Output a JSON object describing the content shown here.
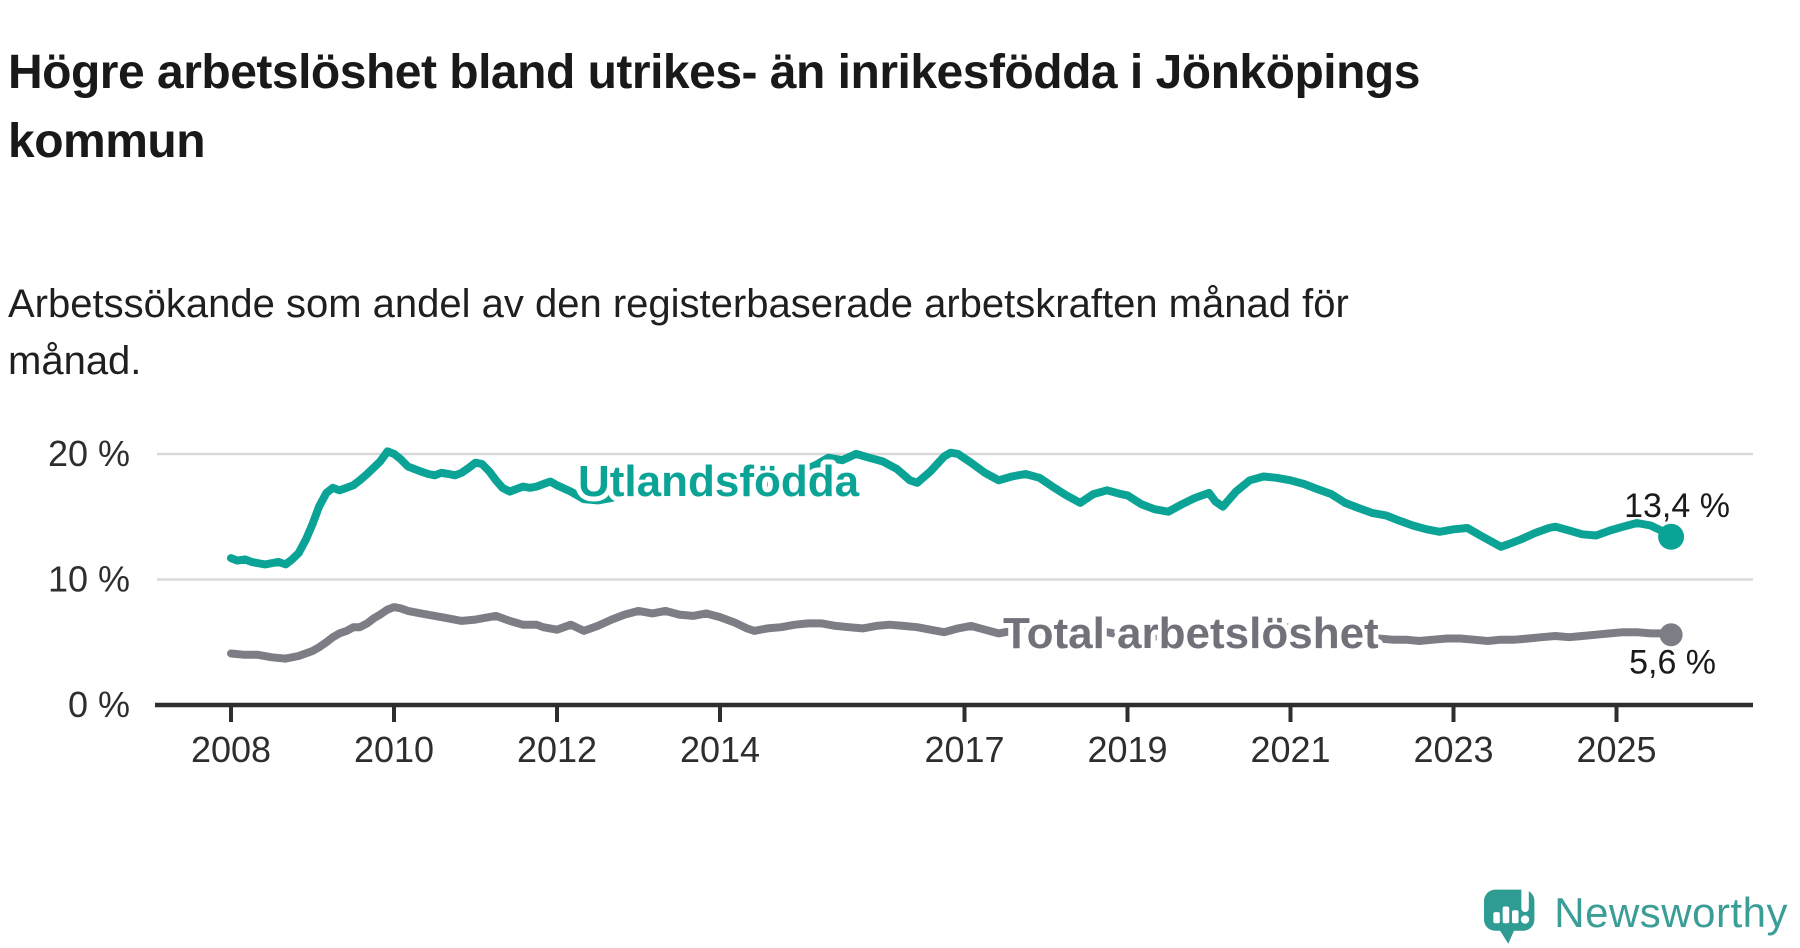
{
  "header": {
    "title": "Högre arbetslöshet bland utrikes- än inrikesfödda i Jönköpings kommun",
    "subtitle": "Arbetssökande som andel av den registerbaserade arbetskraften månad för månad."
  },
  "footer": {
    "brand": "Newsworthy"
  },
  "colors": {
    "teal_line": "#0aa396",
    "gray_line": "#7d7d85",
    "gray_label": "#71717a",
    "logo_teal": "#3a9d96",
    "logo_bubble": "#2f9c94",
    "text_dark": "#191919",
    "axis": "#2e2e2e",
    "grid": "#d9d9d9",
    "value_label": "#1a1a1a"
  },
  "chart_data": {
    "type": "line",
    "title": "Högre arbetslöshet bland utrikes- än inrikesfödda i Jönköpings kommun",
    "subtitle": "Arbetssökande som andel av den registerbaserade arbetskraften månad för månad.",
    "x_unit": "year (monthly observations)",
    "xlim": [
      2007.1,
      2026.7
    ],
    "ylim": [
      0,
      22
    ],
    "grid": true,
    "legend_position": "inline-labels",
    "y_ticks": [
      {
        "value": 0,
        "label": "0 %"
      },
      {
        "value": 10,
        "label": "10 %"
      },
      {
        "value": 20,
        "label": "20 %"
      }
    ],
    "x_ticks": [
      {
        "value": 2008,
        "label": "2008"
      },
      {
        "value": 2010,
        "label": "2010"
      },
      {
        "value": 2012,
        "label": "2012"
      },
      {
        "value": 2014,
        "label": "2014"
      },
      {
        "value": 2017,
        "label": "2017"
      },
      {
        "value": 2019,
        "label": "2019"
      },
      {
        "value": 2021,
        "label": "2021"
      },
      {
        "value": 2023,
        "label": "2023"
      },
      {
        "value": 2025,
        "label": "2025"
      }
    ],
    "series": [
      {
        "name": "Utlandsfödda",
        "color": "#0aa396",
        "label_color": "#0aa396",
        "end_label": "13,4 %",
        "end_value": 13.4,
        "points": [
          [
            2008.0,
            11.7
          ],
          [
            2008.08,
            11.5
          ],
          [
            2008.17,
            11.6
          ],
          [
            2008.25,
            11.4
          ],
          [
            2008.33,
            11.3
          ],
          [
            2008.42,
            11.2
          ],
          [
            2008.5,
            11.3
          ],
          [
            2008.58,
            11.4
          ],
          [
            2008.67,
            11.2
          ],
          [
            2008.75,
            11.6
          ],
          [
            2008.83,
            12.1
          ],
          [
            2008.92,
            13.2
          ],
          [
            2009.0,
            14.4
          ],
          [
            2009.08,
            15.8
          ],
          [
            2009.17,
            16.9
          ],
          [
            2009.25,
            17.3
          ],
          [
            2009.33,
            17.1
          ],
          [
            2009.42,
            17.3
          ],
          [
            2009.5,
            17.5
          ],
          [
            2009.58,
            17.9
          ],
          [
            2009.67,
            18.4
          ],
          [
            2009.75,
            18.9
          ],
          [
            2009.83,
            19.4
          ],
          [
            2009.92,
            20.2
          ],
          [
            2010.0,
            20.0
          ],
          [
            2010.08,
            19.6
          ],
          [
            2010.17,
            19.0
          ],
          [
            2010.25,
            18.8
          ],
          [
            2010.33,
            18.6
          ],
          [
            2010.42,
            18.4
          ],
          [
            2010.5,
            18.3
          ],
          [
            2010.58,
            18.5
          ],
          [
            2010.67,
            18.4
          ],
          [
            2010.75,
            18.3
          ],
          [
            2010.83,
            18.5
          ],
          [
            2010.92,
            18.9
          ],
          [
            2011.0,
            19.3
          ],
          [
            2011.08,
            19.2
          ],
          [
            2011.17,
            18.6
          ],
          [
            2011.25,
            17.9
          ],
          [
            2011.33,
            17.3
          ],
          [
            2011.42,
            17.0
          ],
          [
            2011.5,
            17.2
          ],
          [
            2011.58,
            17.4
          ],
          [
            2011.67,
            17.3
          ],
          [
            2011.75,
            17.4
          ],
          [
            2011.83,
            17.6
          ],
          [
            2011.92,
            17.8
          ],
          [
            2012.0,
            17.5
          ],
          [
            2012.17,
            17.0
          ],
          [
            2012.33,
            16.4
          ],
          [
            2012.5,
            16.3
          ],
          [
            2012.67,
            16.5
          ],
          [
            2012.83,
            16.9
          ],
          [
            2013.0,
            17.3
          ],
          [
            2013.17,
            16.9
          ],
          [
            2013.33,
            17.6
          ],
          [
            2013.5,
            17.8
          ],
          [
            2013.67,
            17.6
          ],
          [
            2013.83,
            17.4
          ],
          [
            2014.0,
            17.1
          ],
          [
            2014.17,
            17.5
          ],
          [
            2014.33,
            17.7
          ],
          [
            2014.5,
            17.4
          ],
          [
            2014.67,
            17.6
          ],
          [
            2014.83,
            18.1
          ],
          [
            2015.0,
            18.6
          ],
          [
            2015.17,
            19.1
          ],
          [
            2015.33,
            19.7
          ],
          [
            2015.5,
            19.5
          ],
          [
            2015.67,
            20.0
          ],
          [
            2015.83,
            19.7
          ],
          [
            2016.0,
            19.4
          ],
          [
            2016.17,
            18.8
          ],
          [
            2016.33,
            17.9
          ],
          [
            2016.42,
            17.7
          ],
          [
            2016.58,
            18.6
          ],
          [
            2016.75,
            19.8
          ],
          [
            2016.83,
            20.1
          ],
          [
            2016.92,
            20.0
          ],
          [
            2017.08,
            19.3
          ],
          [
            2017.25,
            18.5
          ],
          [
            2017.42,
            17.9
          ],
          [
            2017.58,
            18.2
          ],
          [
            2017.75,
            18.4
          ],
          [
            2017.92,
            18.1
          ],
          [
            2018.08,
            17.4
          ],
          [
            2018.25,
            16.7
          ],
          [
            2018.42,
            16.1
          ],
          [
            2018.58,
            16.8
          ],
          [
            2018.75,
            17.1
          ],
          [
            2018.92,
            16.8
          ],
          [
            2019.0,
            16.7
          ],
          [
            2019.17,
            16.0
          ],
          [
            2019.33,
            15.6
          ],
          [
            2019.5,
            15.4
          ],
          [
            2019.67,
            16.0
          ],
          [
            2019.83,
            16.5
          ],
          [
            2020.0,
            16.9
          ],
          [
            2020.08,
            16.2
          ],
          [
            2020.17,
            15.8
          ],
          [
            2020.33,
            17.0
          ],
          [
            2020.5,
            17.9
          ],
          [
            2020.67,
            18.2
          ],
          [
            2020.83,
            18.1
          ],
          [
            2021.0,
            17.9
          ],
          [
            2021.17,
            17.6
          ],
          [
            2021.33,
            17.2
          ],
          [
            2021.5,
            16.8
          ],
          [
            2021.67,
            16.1
          ],
          [
            2021.83,
            15.7
          ],
          [
            2022.0,
            15.3
          ],
          [
            2022.17,
            15.1
          ],
          [
            2022.33,
            14.7
          ],
          [
            2022.5,
            14.3
          ],
          [
            2022.67,
            14.0
          ],
          [
            2022.83,
            13.8
          ],
          [
            2023.0,
            14.0
          ],
          [
            2023.17,
            14.1
          ],
          [
            2023.33,
            13.5
          ],
          [
            2023.5,
            12.9
          ],
          [
            2023.58,
            12.6
          ],
          [
            2023.67,
            12.8
          ],
          [
            2023.83,
            13.2
          ],
          [
            2024.0,
            13.7
          ],
          [
            2024.17,
            14.1
          ],
          [
            2024.25,
            14.2
          ],
          [
            2024.42,
            13.9
          ],
          [
            2024.58,
            13.6
          ],
          [
            2024.75,
            13.5
          ],
          [
            2024.92,
            13.9
          ],
          [
            2025.08,
            14.2
          ],
          [
            2025.25,
            14.5
          ],
          [
            2025.42,
            14.3
          ],
          [
            2025.58,
            13.8
          ],
          [
            2025.67,
            13.4
          ]
        ]
      },
      {
        "name": "Total arbetslöshet",
        "color": "#7d7d85",
        "label_color": "#71717a",
        "end_label": "5,6 %",
        "end_value": 5.6,
        "points": [
          [
            2008.0,
            4.1
          ],
          [
            2008.17,
            4.0
          ],
          [
            2008.33,
            4.0
          ],
          [
            2008.5,
            3.8
          ],
          [
            2008.67,
            3.7
          ],
          [
            2008.83,
            3.9
          ],
          [
            2009.0,
            4.3
          ],
          [
            2009.08,
            4.6
          ],
          [
            2009.17,
            5.0
          ],
          [
            2009.25,
            5.4
          ],
          [
            2009.33,
            5.7
          ],
          [
            2009.42,
            5.9
          ],
          [
            2009.5,
            6.2
          ],
          [
            2009.58,
            6.2
          ],
          [
            2009.67,
            6.5
          ],
          [
            2009.75,
            6.9
          ],
          [
            2009.83,
            7.2
          ],
          [
            2009.92,
            7.6
          ],
          [
            2010.0,
            7.8
          ],
          [
            2010.08,
            7.7
          ],
          [
            2010.17,
            7.5
          ],
          [
            2010.33,
            7.3
          ],
          [
            2010.5,
            7.1
          ],
          [
            2010.67,
            6.9
          ],
          [
            2010.83,
            6.7
          ],
          [
            2011.0,
            6.8
          ],
          [
            2011.17,
            7.0
          ],
          [
            2011.25,
            7.1
          ],
          [
            2011.42,
            6.7
          ],
          [
            2011.58,
            6.4
          ],
          [
            2011.75,
            6.4
          ],
          [
            2011.83,
            6.2
          ],
          [
            2012.0,
            6.0
          ],
          [
            2012.17,
            6.4
          ],
          [
            2012.33,
            5.9
          ],
          [
            2012.5,
            6.3
          ],
          [
            2012.67,
            6.8
          ],
          [
            2012.83,
            7.2
          ],
          [
            2013.0,
            7.5
          ],
          [
            2013.17,
            7.3
          ],
          [
            2013.33,
            7.5
          ],
          [
            2013.5,
            7.2
          ],
          [
            2013.67,
            7.1
          ],
          [
            2013.83,
            7.3
          ],
          [
            2014.0,
            7.0
          ],
          [
            2014.17,
            6.6
          ],
          [
            2014.33,
            6.1
          ],
          [
            2014.42,
            5.9
          ],
          [
            2014.58,
            6.1
          ],
          [
            2014.75,
            6.2
          ],
          [
            2014.92,
            6.4
          ],
          [
            2015.08,
            6.5
          ],
          [
            2015.25,
            6.5
          ],
          [
            2015.42,
            6.3
          ],
          [
            2015.58,
            6.2
          ],
          [
            2015.75,
            6.1
          ],
          [
            2015.92,
            6.3
          ],
          [
            2016.08,
            6.4
          ],
          [
            2016.25,
            6.3
          ],
          [
            2016.42,
            6.2
          ],
          [
            2016.58,
            6.0
          ],
          [
            2016.75,
            5.8
          ],
          [
            2016.92,
            6.1
          ],
          [
            2017.08,
            6.3
          ],
          [
            2017.25,
            6.0
          ],
          [
            2017.42,
            5.7
          ],
          [
            2017.58,
            5.9
          ],
          [
            2017.75,
            6.0
          ],
          [
            2017.92,
            5.9
          ],
          [
            2018.08,
            5.9
          ],
          [
            2018.25,
            5.7
          ],
          [
            2018.42,
            5.6
          ],
          [
            2018.58,
            5.8
          ],
          [
            2018.75,
            5.8
          ],
          [
            2018.92,
            5.6
          ],
          [
            2019.08,
            5.5
          ],
          [
            2019.25,
            5.4
          ],
          [
            2019.42,
            5.5
          ],
          [
            2019.58,
            5.6
          ],
          [
            2019.75,
            5.7
          ],
          [
            2019.92,
            5.8
          ],
          [
            2020.08,
            5.7
          ],
          [
            2020.25,
            5.9
          ],
          [
            2020.42,
            6.1
          ],
          [
            2020.58,
            6.2
          ],
          [
            2020.75,
            6.3
          ],
          [
            2020.92,
            6.2
          ],
          [
            2021.08,
            6.1
          ],
          [
            2021.25,
            6.0
          ],
          [
            2021.42,
            5.8
          ],
          [
            2021.58,
            5.7
          ],
          [
            2021.75,
            5.5
          ],
          [
            2021.92,
            5.4
          ],
          [
            2022.08,
            5.3
          ],
          [
            2022.25,
            5.2
          ],
          [
            2022.42,
            5.2
          ],
          [
            2022.58,
            5.1
          ],
          [
            2022.75,
            5.2
          ],
          [
            2022.92,
            5.3
          ],
          [
            2023.08,
            5.3
          ],
          [
            2023.25,
            5.2
          ],
          [
            2023.42,
            5.1
          ],
          [
            2023.58,
            5.2
          ],
          [
            2023.75,
            5.2
          ],
          [
            2023.92,
            5.3
          ],
          [
            2024.08,
            5.4
          ],
          [
            2024.25,
            5.5
          ],
          [
            2024.42,
            5.4
          ],
          [
            2024.58,
            5.5
          ],
          [
            2024.75,
            5.6
          ],
          [
            2024.92,
            5.7
          ],
          [
            2025.08,
            5.8
          ],
          [
            2025.25,
            5.8
          ],
          [
            2025.42,
            5.7
          ],
          [
            2025.58,
            5.7
          ],
          [
            2025.67,
            5.6
          ]
        ]
      }
    ]
  }
}
